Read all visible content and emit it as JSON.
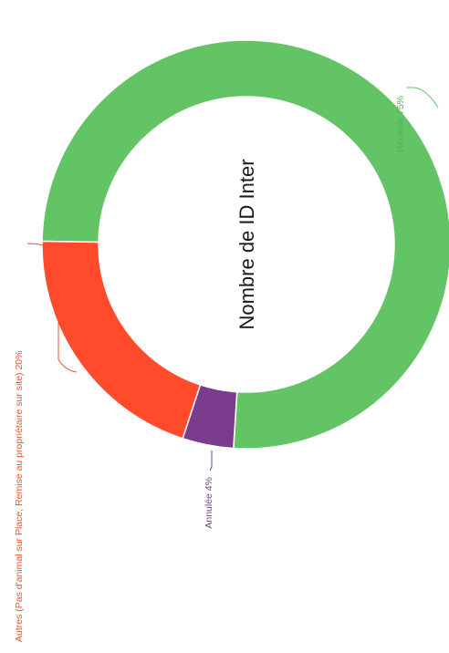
{
  "chart_data": {
    "type": "pie",
    "donut": true,
    "rotated": "counter-clockwise-90",
    "center_label": "Nombre de ID Inter",
    "slices": [
      {
        "label": "Réussie",
        "value": 75,
        "display": "Réussie 75%",
        "color": "#63c466"
      },
      {
        "label": "Annulée",
        "value": 4,
        "display": "Annulée 4%",
        "color": "#7b3c8e"
      },
      {
        "label": "Autres (Pas d'animal sur Place, Remise au propriétaire sur site)",
        "value": 20,
        "display": "Autres (Pas d'animal sur Place, Remise au propriétaire sur site) 20%",
        "color": "#ff4b2b"
      }
    ]
  }
}
